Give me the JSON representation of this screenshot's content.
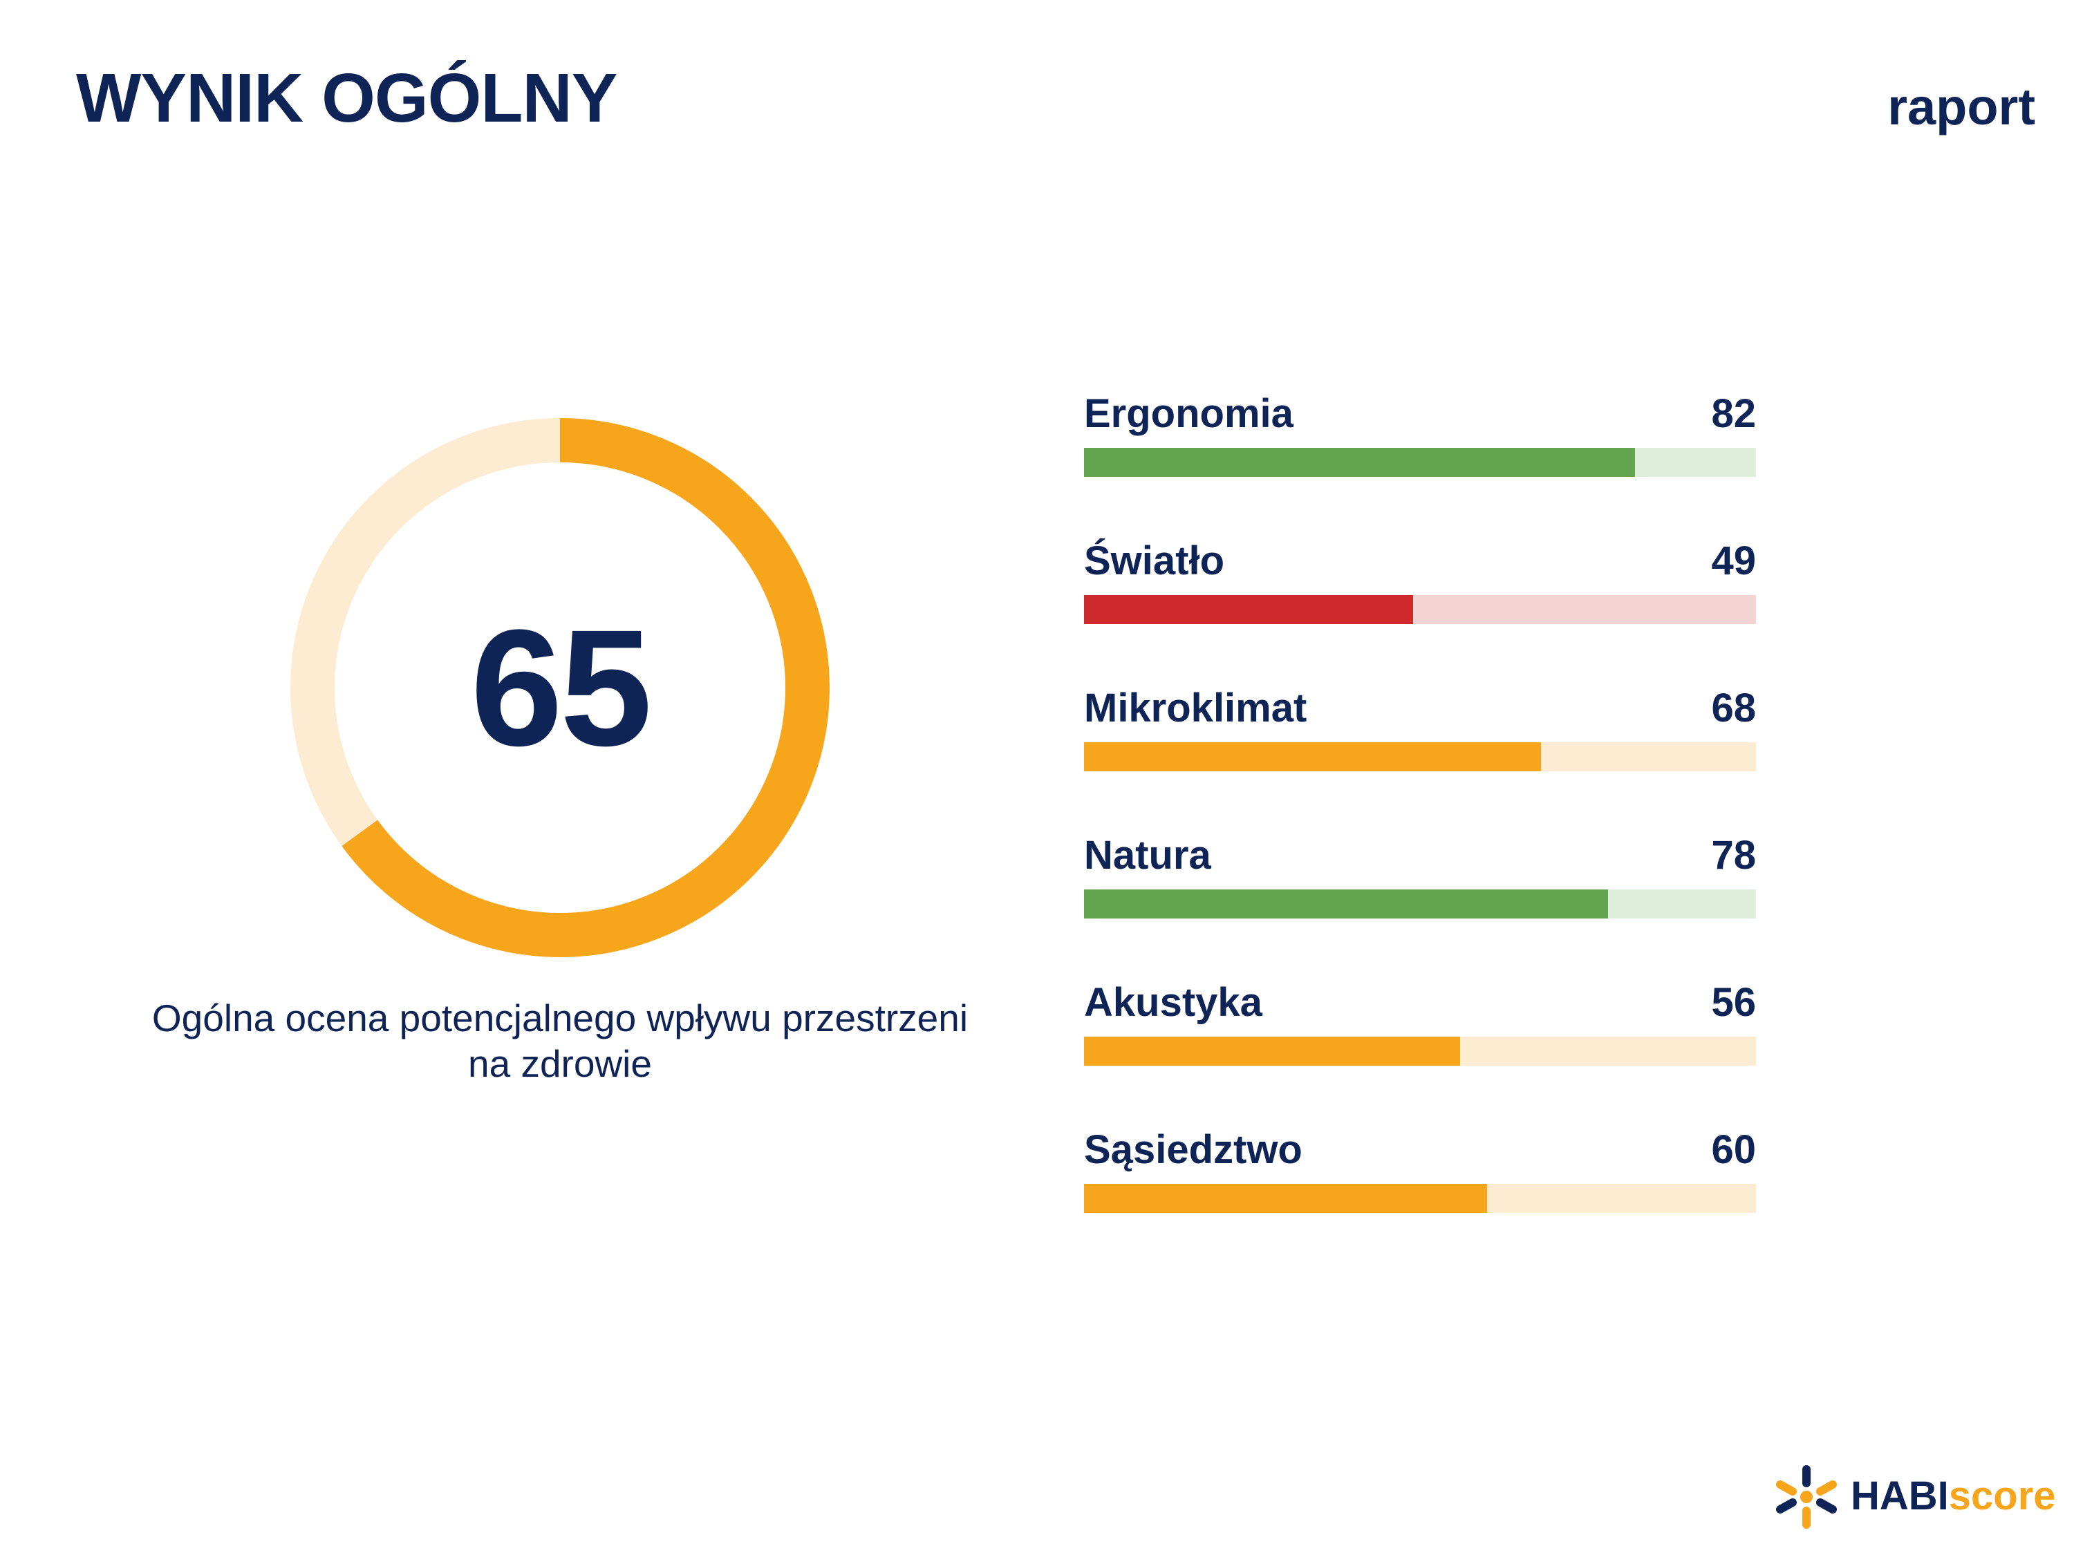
{
  "header": {
    "title": "WYNIK OGÓLNY",
    "report_label": "raport"
  },
  "overall": {
    "score": "65",
    "fraction": 0.65,
    "caption": "Ogólna ocena potencjalnego wpływu przestrzeni na zdrowie",
    "color_fill": "#f7a51b",
    "color_track": "#fdebd2"
  },
  "categories": [
    {
      "name": "Ergonomia",
      "score": "82",
      "fraction": 0.82,
      "color_fill": "#62a44f",
      "color_track": "#dfeeda"
    },
    {
      "name": "Światło",
      "score": "49",
      "fraction": 0.49,
      "color_fill": "#cf2a2b",
      "color_track": "#f4d3d3"
    },
    {
      "name": "Mikroklimat",
      "score": "68",
      "fraction": 0.68,
      "color_fill": "#f7a51b",
      "color_track": "#fdebd2"
    },
    {
      "name": "Natura",
      "score": "78",
      "fraction": 0.78,
      "color_fill": "#62a44f",
      "color_track": "#dfeeda"
    },
    {
      "name": "Akustyka",
      "score": "56",
      "fraction": 0.56,
      "color_fill": "#f7a51b",
      "color_track": "#fdebd2"
    },
    {
      "name": "Sąsiedztwo",
      "score": "60",
      "fraction": 0.6,
      "color_fill": "#f7a51b",
      "color_track": "#fdebd2"
    }
  ],
  "logo": {
    "brand_part1": "HABI",
    "brand_part2": "score",
    "icon": "habiscore-logo-icon"
  }
}
